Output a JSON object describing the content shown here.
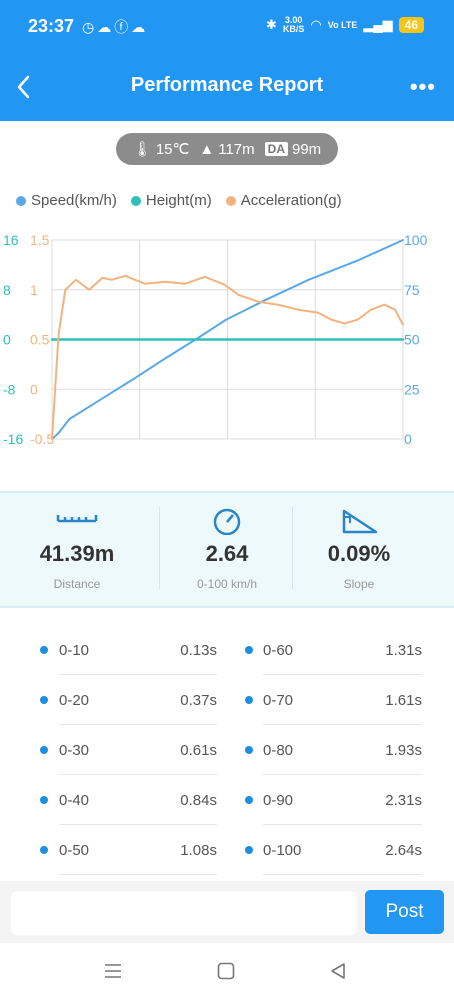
{
  "status_bar": {
    "time": "23:37",
    "net_speed_value": "3.00",
    "net_speed_unit": "KB/S",
    "network_label": "Vo LTE",
    "battery": "46"
  },
  "header": {
    "title": "Performance Report",
    "back_icon": "back-arrow-icon",
    "more_icon": "more-dots-icon"
  },
  "conditions": {
    "temperature": "15℃",
    "altitude": "117m",
    "da_label": "DA",
    "density_altitude": "99m"
  },
  "legend": [
    {
      "label": "Speed(km/h)",
      "color": "#5aa9e6"
    },
    {
      "label": "Height(m)",
      "color": "#2ebfb8"
    },
    {
      "label": "Acceleration(g)",
      "color": "#f4b27e"
    }
  ],
  "chart_data": {
    "type": "line",
    "x_range": [
      0,
      2.64
    ],
    "height_axis": {
      "ticks": [
        "16",
        "8",
        "0",
        "-8",
        "-16"
      ],
      "range": [
        -16,
        16
      ],
      "color": "#2ebfb8"
    },
    "accel_axis": {
      "ticks": [
        "1.5",
        "1",
        "0.5",
        "0",
        "-0.5"
      ],
      "range": [
        -0.5,
        1.5
      ],
      "color": "#f4b27e"
    },
    "speed_axis": {
      "ticks": [
        "100",
        "75",
        "50",
        "25",
        "0"
      ],
      "range": [
        0,
        100
      ],
      "color": "#5aa9e6"
    },
    "grid": true,
    "series": [
      {
        "name": "Speed(km/h)",
        "axis": "speed",
        "color": "#5aa9e6",
        "x": [
          0,
          0.05,
          0.13,
          0.37,
          0.61,
          0.84,
          1.08,
          1.31,
          1.61,
          1.93,
          2.31,
          2.64
        ],
        "y": [
          0,
          3,
          10,
          20,
          30,
          40,
          50,
          60,
          70,
          80,
          90,
          100
        ]
      },
      {
        "name": "Height(m)",
        "axis": "height",
        "color": "#2ebfb8",
        "x": [
          0,
          1.3,
          2.64
        ],
        "y": [
          0,
          0,
          0
        ]
      },
      {
        "name": "Acceleration(g)",
        "axis": "accel",
        "color": "#f4b27e",
        "x": [
          0,
          0.05,
          0.1,
          0.18,
          0.28,
          0.38,
          0.45,
          0.55,
          0.7,
          0.85,
          1.0,
          1.15,
          1.3,
          1.4,
          1.55,
          1.7,
          1.85,
          2.0,
          2.1,
          2.2,
          2.3,
          2.4,
          2.5,
          2.58,
          2.64
        ],
        "y": [
          -0.5,
          0.55,
          1.0,
          1.1,
          1.0,
          1.12,
          1.1,
          1.14,
          1.06,
          1.08,
          1.06,
          1.13,
          1.05,
          0.95,
          0.88,
          0.85,
          0.8,
          0.77,
          0.7,
          0.66,
          0.7,
          0.8,
          0.85,
          0.8,
          0.65
        ]
      }
    ]
  },
  "stats": [
    {
      "icon": "ruler-icon",
      "value": "41.39m",
      "label": "Distance"
    },
    {
      "icon": "speedometer-icon",
      "value": "2.64",
      "label": "0-100 km/h"
    },
    {
      "icon": "slope-icon",
      "value": "0.09%",
      "label": "Slope"
    }
  ],
  "split_times": [
    [
      {
        "range": "0-10",
        "time": "0.13s"
      },
      {
        "range": "0-60",
        "time": "1.31s"
      }
    ],
    [
      {
        "range": "0-20",
        "time": "0.37s"
      },
      {
        "range": "0-70",
        "time": "1.61s"
      }
    ],
    [
      {
        "range": "0-30",
        "time": "0.61s"
      },
      {
        "range": "0-80",
        "time": "1.93s"
      }
    ],
    [
      {
        "range": "0-40",
        "time": "0.84s"
      },
      {
        "range": "0-90",
        "time": "2.31s"
      }
    ],
    [
      {
        "range": "0-50",
        "time": "1.08s"
      },
      {
        "range": "0-100",
        "time": "2.64s"
      }
    ]
  ],
  "composer": {
    "placeholder": "",
    "post_label": "Post"
  },
  "nav": {
    "recent": "menu-lines-icon",
    "home": "square-home-icon",
    "back": "triangle-back-icon"
  }
}
